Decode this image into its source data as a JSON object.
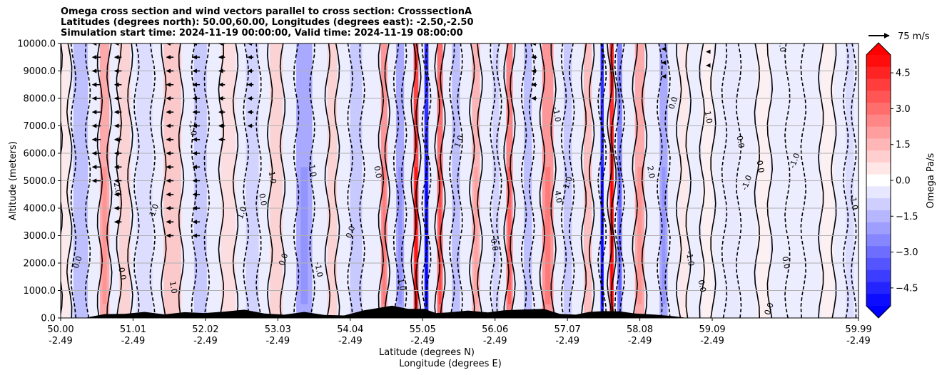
{
  "chart_data": {
    "type": "heatmap",
    "title_lines": [
      "Omega cross section and wind vectors parallel to cross section: CrosssectionA",
      "Latitudes (degrees north): 50.00,60.00, Longitudes (degrees east): -2.50,-2.50",
      "Simulation start time: 2024-11-19 00:00:00, Valid time: 2024-11-19 08:00:00"
    ],
    "ylabel": "Altitude (meters)",
    "xlabel_lat": "Latitude (degrees N)",
    "xlabel_lon": "Longitude (degrees E)",
    "ylim": [
      0,
      10000
    ],
    "y_ticks": [
      0,
      1000,
      2000,
      3000,
      4000,
      5000,
      6000,
      7000,
      8000,
      9000,
      10000
    ],
    "y_tick_labels": [
      "0.0",
      "1000.0",
      "2000.0",
      "3000.0",
      "4000.0",
      "5000.0",
      "6000.0",
      "7000.0",
      "8000.0",
      "9000.0",
      "10000.0"
    ],
    "xlim": [
      50.0,
      59.99
    ],
    "x_ticks_lat": [
      "50.00",
      "51.01",
      "52.02",
      "53.03",
      "54.04",
      "55.05",
      "56.06",
      "57.07",
      "58.08",
      "59.09",
      "59.99"
    ],
    "x_ticks_lon": [
      "-2.49",
      "-2.49",
      "-2.49",
      "-2.49",
      "-2.49",
      "-2.49",
      "-2.49",
      "-2.49",
      "-2.49",
      "-2.49",
      "-2.49"
    ],
    "grid": "horizontal",
    "colorbar": {
      "label": "Omega Pa/s",
      "min": -5.25,
      "max": 5.25,
      "levels": 21,
      "extend": "both",
      "tick_values": [
        4.5,
        3.0,
        1.5,
        0.0,
        -1.5,
        -3.0,
        -4.5
      ],
      "tick_labels": [
        "4.5",
        "3.0",
        "1.5",
        "0.0",
        "−1.5",
        "−3.0",
        "−4.5"
      ],
      "colormap": "bwr"
    },
    "quiver_key": {
      "label": "75 m/s",
      "speed": 75
    },
    "omega_bands": [
      {
        "lat": 50.05,
        "width": 0.12,
        "value": 0.5
      },
      {
        "lat": 50.25,
        "width": 0.18,
        "value": -1.5
      },
      {
        "lat": 50.55,
        "width": 0.12,
        "value": 2.0
      },
      {
        "lat": 50.8,
        "width": 0.14,
        "value": 1.0
      },
      {
        "lat": 51.05,
        "width": 0.2,
        "value": -0.75
      },
      {
        "lat": 51.4,
        "width": 0.22,
        "value": 1.25
      },
      {
        "lat": 51.75,
        "width": 0.16,
        "value": -1.25
      },
      {
        "lat": 52.1,
        "width": 0.18,
        "value": 0.75
      },
      {
        "lat": 52.4,
        "width": 0.16,
        "value": -1.0
      },
      {
        "lat": 52.7,
        "width": 0.16,
        "value": 1.0
      },
      {
        "lat": 53.05,
        "width": 0.2,
        "value": -2.0
      },
      {
        "lat": 53.4,
        "width": 0.12,
        "value": 1.0
      },
      {
        "lat": 53.7,
        "width": 0.15,
        "value": -1.25
      },
      {
        "lat": 54.05,
        "width": 0.08,
        "value": 2.5
      },
      {
        "lat": 54.25,
        "width": 0.1,
        "value": -2.0
      },
      {
        "lat": 54.45,
        "width": 0.06,
        "value": 4.5
      },
      {
        "lat": 54.58,
        "width": 0.05,
        "value": -5.0
      },
      {
        "lat": 54.75,
        "width": 0.07,
        "value": 3.5
      },
      {
        "lat": 54.95,
        "width": 0.1,
        "value": -1.5
      },
      {
        "lat": 55.2,
        "width": 0.1,
        "value": 1.75
      },
      {
        "lat": 55.45,
        "width": 0.08,
        "value": -1.0
      },
      {
        "lat": 55.62,
        "width": 0.08,
        "value": 3.0
      },
      {
        "lat": 55.85,
        "width": 0.1,
        "value": -1.5
      },
      {
        "lat": 56.1,
        "width": 0.14,
        "value": 2.5
      },
      {
        "lat": 56.35,
        "width": 0.1,
        "value": -1.25
      },
      {
        "lat": 56.6,
        "width": 0.1,
        "value": 1.5
      },
      {
        "lat": 56.78,
        "width": 0.04,
        "value": -5.0
      },
      {
        "lat": 56.9,
        "width": 0.05,
        "value": 5.0
      },
      {
        "lat": 57.0,
        "width": 0.06,
        "value": -3.0
      },
      {
        "lat": 57.25,
        "width": 0.12,
        "value": 2.0
      },
      {
        "lat": 57.55,
        "width": 0.1,
        "value": -2.0
      },
      {
        "lat": 57.8,
        "width": 0.12,
        "value": 0.5
      },
      {
        "lat": 58.1,
        "width": 0.14,
        "value": 0.3
      },
      {
        "lat": 58.4,
        "width": 0.18,
        "value": -0.5
      },
      {
        "lat": 58.8,
        "width": 0.16,
        "value": 0.3
      },
      {
        "lat": 59.2,
        "width": 0.2,
        "value": -0.4
      },
      {
        "lat": 59.6,
        "width": 0.16,
        "value": 0.3
      },
      {
        "lat": 59.88,
        "width": 0.1,
        "value": -0.8
      }
    ],
    "contour_labels": [
      {
        "lat": 50.24,
        "alt": 2000,
        "text": "0.0"
      },
      {
        "lat": 50.68,
        "alt": 4700,
        "text": "2.0"
      },
      {
        "lat": 50.74,
        "alt": 1600,
        "text": "0.0"
      },
      {
        "lat": 51.2,
        "alt": 3900,
        "text": "1.0"
      },
      {
        "lat": 51.38,
        "alt": 1100,
        "text": "1.0"
      },
      {
        "lat": 51.62,
        "alt": 6900,
        "text": "-1.0"
      },
      {
        "lat": 52.3,
        "alt": 3800,
        "text": "1.0"
      },
      {
        "lat": 52.5,
        "alt": 4300,
        "text": "0.0"
      },
      {
        "lat": 52.62,
        "alt": 5100,
        "text": "1.0"
      },
      {
        "lat": 52.82,
        "alt": 2100,
        "text": "0.0"
      },
      {
        "lat": 53.12,
        "alt": 5400,
        "text": "-1.0"
      },
      {
        "lat": 53.2,
        "alt": 1750,
        "text": "-1.0"
      },
      {
        "lat": 53.66,
        "alt": 3100,
        "text": "0.0"
      },
      {
        "lat": 53.94,
        "alt": 5300,
        "text": "0.0"
      },
      {
        "lat": 54.24,
        "alt": 1200,
        "text": "1.0"
      },
      {
        "lat": 55.02,
        "alt": 6400,
        "text": "1.0"
      },
      {
        "lat": 55.4,
        "alt": 2650,
        "text": "0.0"
      },
      {
        "lat": 56.18,
        "alt": 7400,
        "text": "-1.0"
      },
      {
        "lat": 56.38,
        "alt": 4900,
        "text": "1.0"
      },
      {
        "lat": 56.2,
        "alt": 4400,
        "text": "4.0"
      },
      {
        "lat": 57.36,
        "alt": 5300,
        "text": "2.0"
      },
      {
        "lat": 57.7,
        "alt": 7800,
        "text": "0.0"
      },
      {
        "lat": 58.08,
        "alt": 7300,
        "text": "1.0"
      },
      {
        "lat": 58.48,
        "alt": 6400,
        "text": "0.0"
      },
      {
        "lat": 58.62,
        "alt": 4900,
        "text": "-1.0"
      },
      {
        "lat": 58.73,
        "alt": 5500,
        "text": "0.0"
      },
      {
        "lat": 59.0,
        "alt": 9900,
        "text": "0.0"
      },
      {
        "lat": 59.22,
        "alt": 5700,
        "text": "-1.0"
      },
      {
        "lat": 59.05,
        "alt": 2000,
        "text": "0.0"
      },
      {
        "lat": 59.9,
        "alt": 4200,
        "text": "-1.0"
      },
      {
        "lat": 58.9,
        "alt": 300,
        "text": "0.0"
      },
      {
        "lat": 58.0,
        "alt": 1150,
        "text": "0.0"
      },
      {
        "lat": 57.85,
        "alt": 2150,
        "text": "-1.0"
      }
    ],
    "wind_vectors": {
      "direction": "west",
      "columns": [
        {
          "lat": 50.45,
          "alt_min": 5000,
          "alt_max": 10000,
          "speed": 30
        },
        {
          "lat": 50.72,
          "alt_min": 3500,
          "alt_max": 10000,
          "speed": 25
        },
        {
          "lat": 51.37,
          "alt_min": 3000,
          "alt_max": 10000,
          "speed": 25
        },
        {
          "lat": 51.7,
          "alt_min": 3000,
          "alt_max": 10000,
          "speed": 25
        },
        {
          "lat": 52.02,
          "alt_min": 6500,
          "alt_max": 10000,
          "speed": 22
        },
        {
          "lat": 52.38,
          "alt_min": 7000,
          "alt_max": 10000,
          "speed": 20
        },
        {
          "lat": 55.93,
          "alt_min": 8000,
          "alt_max": 10000,
          "speed": 18
        },
        {
          "lat": 57.55,
          "alt_min": 8800,
          "alt_max": 10000,
          "speed": 12
        },
        {
          "lat": 58.1,
          "alt_min": 9200,
          "alt_max": 10000,
          "speed": 8
        }
      ]
    },
    "terrain": [
      {
        "lat": 50.3,
        "alt": 0
      },
      {
        "lat": 50.4,
        "alt": 60
      },
      {
        "lat": 50.55,
        "alt": 140
      },
      {
        "lat": 50.8,
        "alt": 150
      },
      {
        "lat": 51.05,
        "alt": 220
      },
      {
        "lat": 51.3,
        "alt": 130
      },
      {
        "lat": 51.55,
        "alt": 210
      },
      {
        "lat": 51.8,
        "alt": 180
      },
      {
        "lat": 52.05,
        "alt": 230
      },
      {
        "lat": 52.3,
        "alt": 300
      },
      {
        "lat": 52.55,
        "alt": 160
      },
      {
        "lat": 52.8,
        "alt": 120
      },
      {
        "lat": 53.05,
        "alt": 220
      },
      {
        "lat": 53.3,
        "alt": 110
      },
      {
        "lat": 53.55,
        "alt": 90
      },
      {
        "lat": 53.8,
        "alt": 280
      },
      {
        "lat": 53.95,
        "alt": 350
      },
      {
        "lat": 54.15,
        "alt": 450
      },
      {
        "lat": 54.35,
        "alt": 330
      },
      {
        "lat": 54.55,
        "alt": 330
      },
      {
        "lat": 54.7,
        "alt": 180
      },
      {
        "lat": 54.85,
        "alt": 200
      },
      {
        "lat": 55.1,
        "alt": 270
      },
      {
        "lat": 55.35,
        "alt": 200
      },
      {
        "lat": 55.55,
        "alt": 280
      },
      {
        "lat": 55.8,
        "alt": 310
      },
      {
        "lat": 56.05,
        "alt": 330
      },
      {
        "lat": 56.25,
        "alt": 150
      },
      {
        "lat": 56.45,
        "alt": 120
      },
      {
        "lat": 56.62,
        "alt": 220
      },
      {
        "lat": 56.8,
        "alt": 250
      },
      {
        "lat": 57.0,
        "alt": 240
      },
      {
        "lat": 57.2,
        "alt": 160
      },
      {
        "lat": 57.45,
        "alt": 120
      },
      {
        "lat": 57.65,
        "alt": 70
      },
      {
        "lat": 57.85,
        "alt": 0
      }
    ]
  }
}
